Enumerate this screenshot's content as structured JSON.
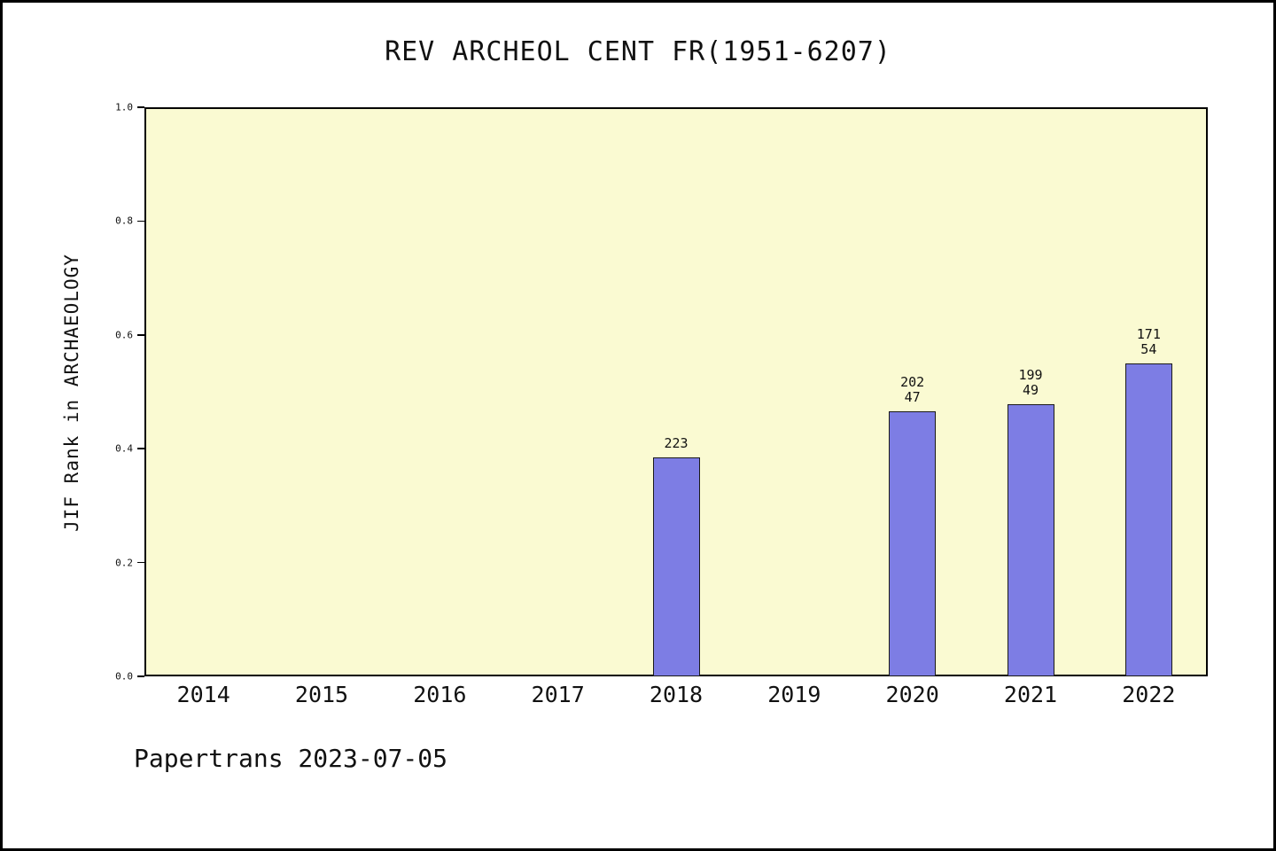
{
  "chart_data": {
    "type": "bar",
    "title": "REV ARCHEOL CENT FR(1951-6207)",
    "ylabel": "JIF Rank in ARCHAEOLOGY",
    "xlabel": "",
    "categories": [
      "2014",
      "2015",
      "2016",
      "2017",
      "2018",
      "2019",
      "2020",
      "2021",
      "2022"
    ],
    "values": [
      null,
      null,
      null,
      null,
      0.385,
      null,
      0.465,
      0.478,
      0.55
    ],
    "bar_labels": [
      null,
      null,
      null,
      null,
      [
        "223"
      ],
      null,
      [
        "202",
        "47"
      ],
      [
        "199",
        "49"
      ],
      [
        "171",
        "54"
      ]
    ],
    "ylim": [
      0.0,
      1.0
    ],
    "yticks": [
      0.0,
      0.2,
      0.4,
      0.6,
      0.8,
      1.0
    ],
    "grid": false,
    "legend": "none",
    "colors": {
      "bar": "#7d7de4",
      "plot_bg": "#fafad2",
      "frame_border": "#000000",
      "text": "#111111"
    }
  },
  "footer": {
    "text": "Papertrans 2023-07-05"
  }
}
